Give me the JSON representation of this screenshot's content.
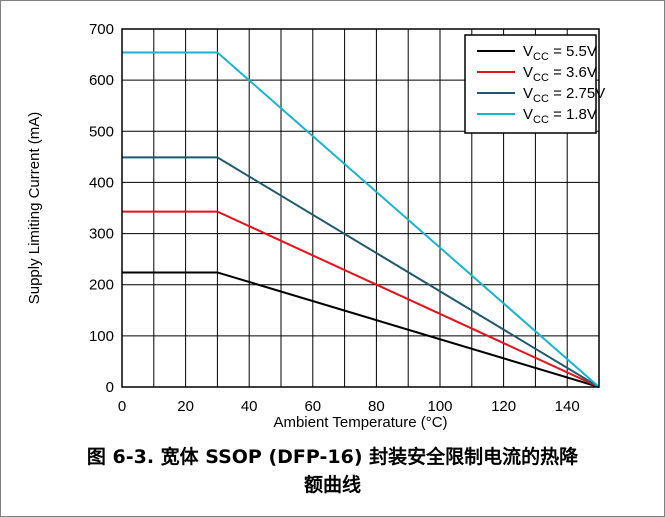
{
  "chart_data": {
    "type": "line",
    "title": "",
    "xlabel": "Ambient Temperature (°C)",
    "ylabel": "Supply Limiting Current (mA)",
    "xlim": [
      0,
      150
    ],
    "ylim": [
      0,
      700
    ],
    "xticks": [
      0,
      20,
      40,
      60,
      80,
      100,
      120,
      140
    ],
    "yticks": [
      0,
      100,
      200,
      300,
      400,
      500,
      600,
      700
    ],
    "grid": true,
    "legend_position": "top-right",
    "series": [
      {
        "name_main": "V",
        "name_sub": "CC",
        "name_rest": " = 5.5V",
        "color": "#000000",
        "points": [
          [
            0,
            224
          ],
          [
            30,
            224
          ],
          [
            150,
            0
          ]
        ]
      },
      {
        "name_main": "V",
        "name_sub": "CC",
        "name_rest": " = 3.6V",
        "color": "#e4121b",
        "points": [
          [
            0,
            343
          ],
          [
            30,
            343
          ],
          [
            150,
            0
          ]
        ]
      },
      {
        "name_main": "V",
        "name_sub": "CC",
        "name_rest": " = 2.75V",
        "color": "#1f5a6e",
        "points": [
          [
            0,
            449
          ],
          [
            30,
            449
          ],
          [
            150,
            0
          ]
        ]
      },
      {
        "name_main": "V",
        "name_sub": "CC",
        "name_rest": " = 1.8V",
        "color": "#1cb3cf",
        "points": [
          [
            0,
            654
          ],
          [
            30,
            654
          ],
          [
            150,
            0
          ]
        ]
      }
    ]
  },
  "caption": {
    "line1": "图 6-3. 宽体 SSOP (DFP-16) 封装安全限制电流的热降",
    "line2": "额曲线"
  }
}
